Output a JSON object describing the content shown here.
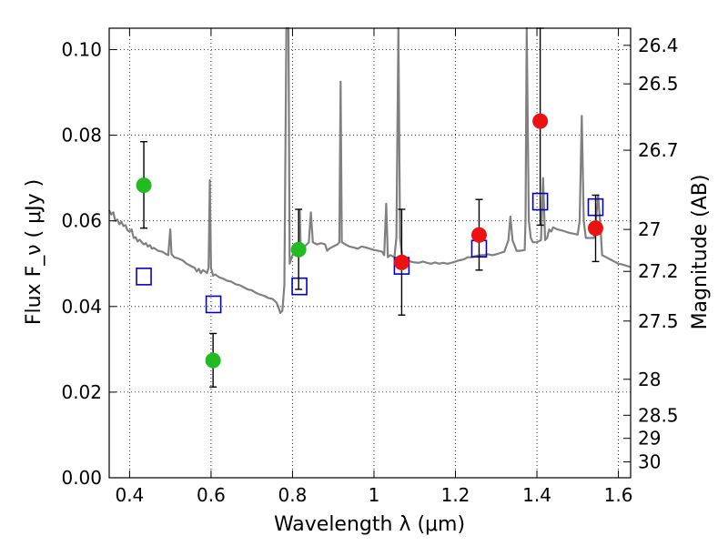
{
  "chart_data": {
    "type": "scatter",
    "xlabel": "Wavelength  λ (μm)",
    "ylabel": "Flux  F_ν  ( μJy )",
    "ylabel_right": "Magnitude (AB)",
    "xlim": [
      0.35,
      1.63
    ],
    "ylim": [
      0.0,
      0.105
    ],
    "grid": true,
    "x_ticks": [
      0.4,
      0.6,
      0.8,
      1.0,
      1.2,
      1.4,
      1.6
    ],
    "x_tick_labels": [
      "0.4",
      "0.6",
      "0.8",
      "1",
      "1.2",
      "1.4",
      "1.6"
    ],
    "y_ticks": [
      0.0,
      0.02,
      0.04,
      0.06,
      0.08,
      0.1
    ],
    "y_tick_labels": [
      "0.00",
      "0.02",
      "0.04",
      "0.06",
      "0.08",
      "0.10"
    ],
    "right_ticks": [
      {
        "label": "26.4",
        "flux": 0.101
      },
      {
        "label": "26.5",
        "flux": 0.092
      },
      {
        "label": "26.7",
        "flux": 0.0765
      },
      {
        "label": "27",
        "flux": 0.058
      },
      {
        "label": "27.2",
        "flux": 0.0482
      },
      {
        "label": "27.5",
        "flux": 0.0366
      },
      {
        "label": "28",
        "flux": 0.023
      },
      {
        "label": "28.5",
        "flux": 0.0146
      },
      {
        "label": "29",
        "flux": 0.0092
      },
      {
        "label": "30",
        "flux": 0.0037
      }
    ],
    "colors": {
      "spectrum": "#808080",
      "green_points": "#22bb22",
      "red_points": "#ee1111",
      "model_boxes": "#0000cc",
      "errorbars": "#000000"
    },
    "spectrum": [
      [
        0.35,
        0.0625
      ],
      [
        0.355,
        0.0615
      ],
      [
        0.36,
        0.062
      ],
      [
        0.365,
        0.06
      ],
      [
        0.37,
        0.0603
      ],
      [
        0.375,
        0.0592
      ],
      [
        0.38,
        0.0598
      ],
      [
        0.385,
        0.0588
      ],
      [
        0.39,
        0.059
      ],
      [
        0.395,
        0.0578
      ],
      [
        0.4,
        0.0575
      ],
      [
        0.405,
        0.058
      ],
      [
        0.41,
        0.056
      ],
      [
        0.415,
        0.0562
      ],
      [
        0.42,
        0.0552
      ],
      [
        0.425,
        0.0556
      ],
      [
        0.43,
        0.055
      ],
      [
        0.435,
        0.0545
      ],
      [
        0.44,
        0.0548
      ],
      [
        0.445,
        0.054
      ],
      [
        0.45,
        0.0543
      ],
      [
        0.455,
        0.0535
      ],
      [
        0.46,
        0.0537
      ],
      [
        0.47,
        0.053
      ],
      [
        0.48,
        0.0528
      ],
      [
        0.49,
        0.0522
      ],
      [
        0.495,
        0.052
      ],
      [
        0.5,
        0.058
      ],
      [
        0.503,
        0.0522
      ],
      [
        0.51,
        0.0515
      ],
      [
        0.52,
        0.0512
      ],
      [
        0.53,
        0.0508
      ],
      [
        0.54,
        0.05
      ],
      [
        0.55,
        0.0495
      ],
      [
        0.56,
        0.049
      ],
      [
        0.565,
        0.0482
      ],
      [
        0.57,
        0.0488
      ],
      [
        0.575,
        0.0478
      ],
      [
        0.58,
        0.0485
      ],
      [
        0.585,
        0.0482
      ],
      [
        0.59,
        0.0478
      ],
      [
        0.594,
        0.049
      ],
      [
        0.597,
        0.0695
      ],
      [
        0.6,
        0.049
      ],
      [
        0.605,
        0.0472
      ],
      [
        0.61,
        0.0475
      ],
      [
        0.62,
        0.0468
      ],
      [
        0.63,
        0.0465
      ],
      [
        0.64,
        0.046
      ],
      [
        0.65,
        0.0458
      ],
      [
        0.66,
        0.0452
      ],
      [
        0.67,
        0.045
      ],
      [
        0.68,
        0.0445
      ],
      [
        0.69,
        0.044
      ],
      [
        0.7,
        0.0438
      ],
      [
        0.71,
        0.0432
      ],
      [
        0.72,
        0.0428
      ],
      [
        0.73,
        0.0425
      ],
      [
        0.74,
        0.042
      ],
      [
        0.75,
        0.0418
      ],
      [
        0.76,
        0.041
      ],
      [
        0.765,
        0.04
      ],
      [
        0.77,
        0.0385
      ],
      [
        0.775,
        0.039
      ],
      [
        0.78,
        0.045
      ],
      [
        0.785,
        0.105
      ],
      [
        0.79,
        0.105
      ],
      [
        0.793,
        0.05
      ],
      [
        0.8,
        0.052
      ],
      [
        0.81,
        0.0525
      ],
      [
        0.815,
        0.053
      ],
      [
        0.818,
        0.0625
      ],
      [
        0.82,
        0.053
      ],
      [
        0.83,
        0.054
      ],
      [
        0.835,
        0.0545
      ],
      [
        0.84,
        0.055
      ],
      [
        0.845,
        0.062
      ],
      [
        0.85,
        0.055
      ],
      [
        0.86,
        0.0545
      ],
      [
        0.87,
        0.0548
      ],
      [
        0.88,
        0.0545
      ],
      [
        0.885,
        0.053
      ],
      [
        0.89,
        0.0535
      ],
      [
        0.9,
        0.054
      ],
      [
        0.91,
        0.0545
      ],
      [
        0.915,
        0.055
      ],
      [
        0.918,
        0.0925
      ],
      [
        0.921,
        0.055
      ],
      [
        0.93,
        0.0545
      ],
      [
        0.94,
        0.054
      ],
      [
        0.95,
        0.0538
      ],
      [
        0.96,
        0.0535
      ],
      [
        0.97,
        0.054
      ],
      [
        0.98,
        0.0538
      ],
      [
        0.99,
        0.0535
      ],
      [
        1.0,
        0.0532
      ],
      [
        1.01,
        0.053
      ],
      [
        1.02,
        0.0528
      ],
      [
        1.025,
        0.052
      ],
      [
        1.03,
        0.064
      ],
      [
        1.034,
        0.0515
      ],
      [
        1.04,
        0.052
      ],
      [
        1.05,
        0.0515
      ],
      [
        1.055,
        0.056
      ],
      [
        1.06,
        0.105
      ],
      [
        1.064,
        0.056
      ],
      [
        1.07,
        0.051
      ],
      [
        1.08,
        0.0508
      ],
      [
        1.09,
        0.0505
      ],
      [
        1.1,
        0.0503
      ],
      [
        1.11,
        0.0502
      ],
      [
        1.12,
        0.0505
      ],
      [
        1.13,
        0.0502
      ],
      [
        1.14,
        0.05
      ],
      [
        1.15,
        0.0503
      ],
      [
        1.16,
        0.05
      ],
      [
        1.17,
        0.0502
      ],
      [
        1.18,
        0.05
      ],
      [
        1.19,
        0.0502
      ],
      [
        1.2,
        0.0505
      ],
      [
        1.21,
        0.0508
      ],
      [
        1.22,
        0.051
      ],
      [
        1.23,
        0.0515
      ],
      [
        1.24,
        0.0515
      ],
      [
        1.25,
        0.0518
      ],
      [
        1.26,
        0.052
      ],
      [
        1.27,
        0.052
      ],
      [
        1.28,
        0.0522
      ],
      [
        1.29,
        0.052
      ],
      [
        1.3,
        0.0522
      ],
      [
        1.31,
        0.0525
      ],
      [
        1.32,
        0.0528
      ],
      [
        1.33,
        0.0555
      ],
      [
        1.335,
        0.061
      ],
      [
        1.34,
        0.0555
      ],
      [
        1.35,
        0.053
      ],
      [
        1.36,
        0.053
      ],
      [
        1.37,
        0.0532
      ],
      [
        1.372,
        0.06
      ],
      [
        1.375,
        0.105
      ],
      [
        1.38,
        0.06
      ],
      [
        1.385,
        0.056
      ],
      [
        1.39,
        0.055
      ],
      [
        1.4,
        0.055
      ],
      [
        1.41,
        0.0555
      ],
      [
        1.415,
        0.07
      ],
      [
        1.42,
        0.0555
      ],
      [
        1.425,
        0.056
      ],
      [
        1.43,
        0.058
      ],
      [
        1.435,
        0.0575
      ],
      [
        1.44,
        0.0585
      ],
      [
        1.45,
        0.058
      ],
      [
        1.46,
        0.0578
      ],
      [
        1.47,
        0.0575
      ],
      [
        1.48,
        0.0572
      ],
      [
        1.49,
        0.057
      ],
      [
        1.5,
        0.0568
      ],
      [
        1.505,
        0.06
      ],
      [
        1.51,
        0.0845
      ],
      [
        1.515,
        0.06
      ],
      [
        1.52,
        0.056
      ],
      [
        1.53,
        0.056
      ],
      [
        1.535,
        0.056
      ],
      [
        1.54,
        0.056
      ],
      [
        1.545,
        0.06
      ],
      [
        1.55,
        0.066
      ],
      [
        1.555,
        0.06
      ],
      [
        1.56,
        0.052
      ],
      [
        1.57,
        0.0515
      ],
      [
        1.58,
        0.051
      ],
      [
        1.59,
        0.0505
      ],
      [
        1.6,
        0.05
      ],
      [
        1.61,
        0.0498
      ],
      [
        1.62,
        0.0495
      ],
      [
        1.63,
        0.0492
      ]
    ],
    "green_points": [
      {
        "x": 0.435,
        "y": 0.0683,
        "err_low": 0.0583,
        "err_high": 0.0785
      },
      {
        "x": 0.605,
        "y": 0.0274,
        "err_low": 0.0212,
        "err_high": 0.0337
      },
      {
        "x": 0.815,
        "y": 0.0533,
        "err_low": 0.044,
        "err_high": 0.0627
      }
    ],
    "red_points": [
      {
        "x": 1.068,
        "y": 0.0503,
        "err_low": 0.038,
        "err_high": 0.0627
      },
      {
        "x": 1.258,
        "y": 0.0567,
        "err_low": 0.0485,
        "err_high": 0.065
      },
      {
        "x": 1.408,
        "y": 0.0833,
        "err_low": 0.059,
        "err_high": 0.105
      },
      {
        "x": 1.544,
        "y": 0.0583,
        "err_low": 0.0505,
        "err_high": 0.066
      }
    ],
    "model_boxes": [
      {
        "x": 0.435,
        "y": 0.047
      },
      {
        "x": 0.606,
        "y": 0.0405
      },
      {
        "x": 0.817,
        "y": 0.0447
      },
      {
        "x": 1.068,
        "y": 0.0495
      },
      {
        "x": 1.258,
        "y": 0.0535
      },
      {
        "x": 1.408,
        "y": 0.0645
      },
      {
        "x": 1.544,
        "y": 0.0632
      }
    ]
  }
}
